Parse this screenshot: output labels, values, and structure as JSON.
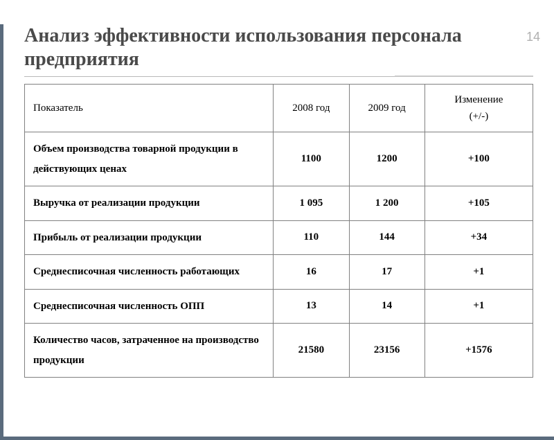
{
  "page_number": "14",
  "title": "Анализ эффективности использования персонала предприятия",
  "table": {
    "headers": {
      "indicator": "Показатель",
      "year1": "2008 год",
      "year2": "2009 год",
      "change_line1": "Изменение",
      "change_line2": "(+/-)"
    },
    "rows": [
      {
        "indicator": "Объем производства товарной продукции в действующих ценах",
        "year1": "1100",
        "year2": "1200",
        "change": "+100"
      },
      {
        "indicator": "Выручка от реализации продукции",
        "year1": "1 095",
        "year2": "1 200",
        "change": "+105"
      },
      {
        "indicator": "Прибыль от реализации продукции",
        "year1": "110",
        "year2": "144",
        "change": "+34"
      },
      {
        "indicator": "Среднесписочная численность работающих",
        "year1": "16",
        "year2": "17",
        "change": "+1"
      },
      {
        "indicator": "Среднесписочная численность ОПП",
        "year1": "13",
        "year2": "14",
        "change": "+1"
      },
      {
        "indicator": "Количество часов, затраченное на производство продукции",
        "year1": "21580",
        "year2": "23156",
        "change": "+1576"
      }
    ]
  },
  "colors": {
    "border_accent": "#5a6b7d",
    "title_color": "#4a4a4a",
    "page_num_color": "#b0b0b0",
    "table_border": "#808080"
  }
}
